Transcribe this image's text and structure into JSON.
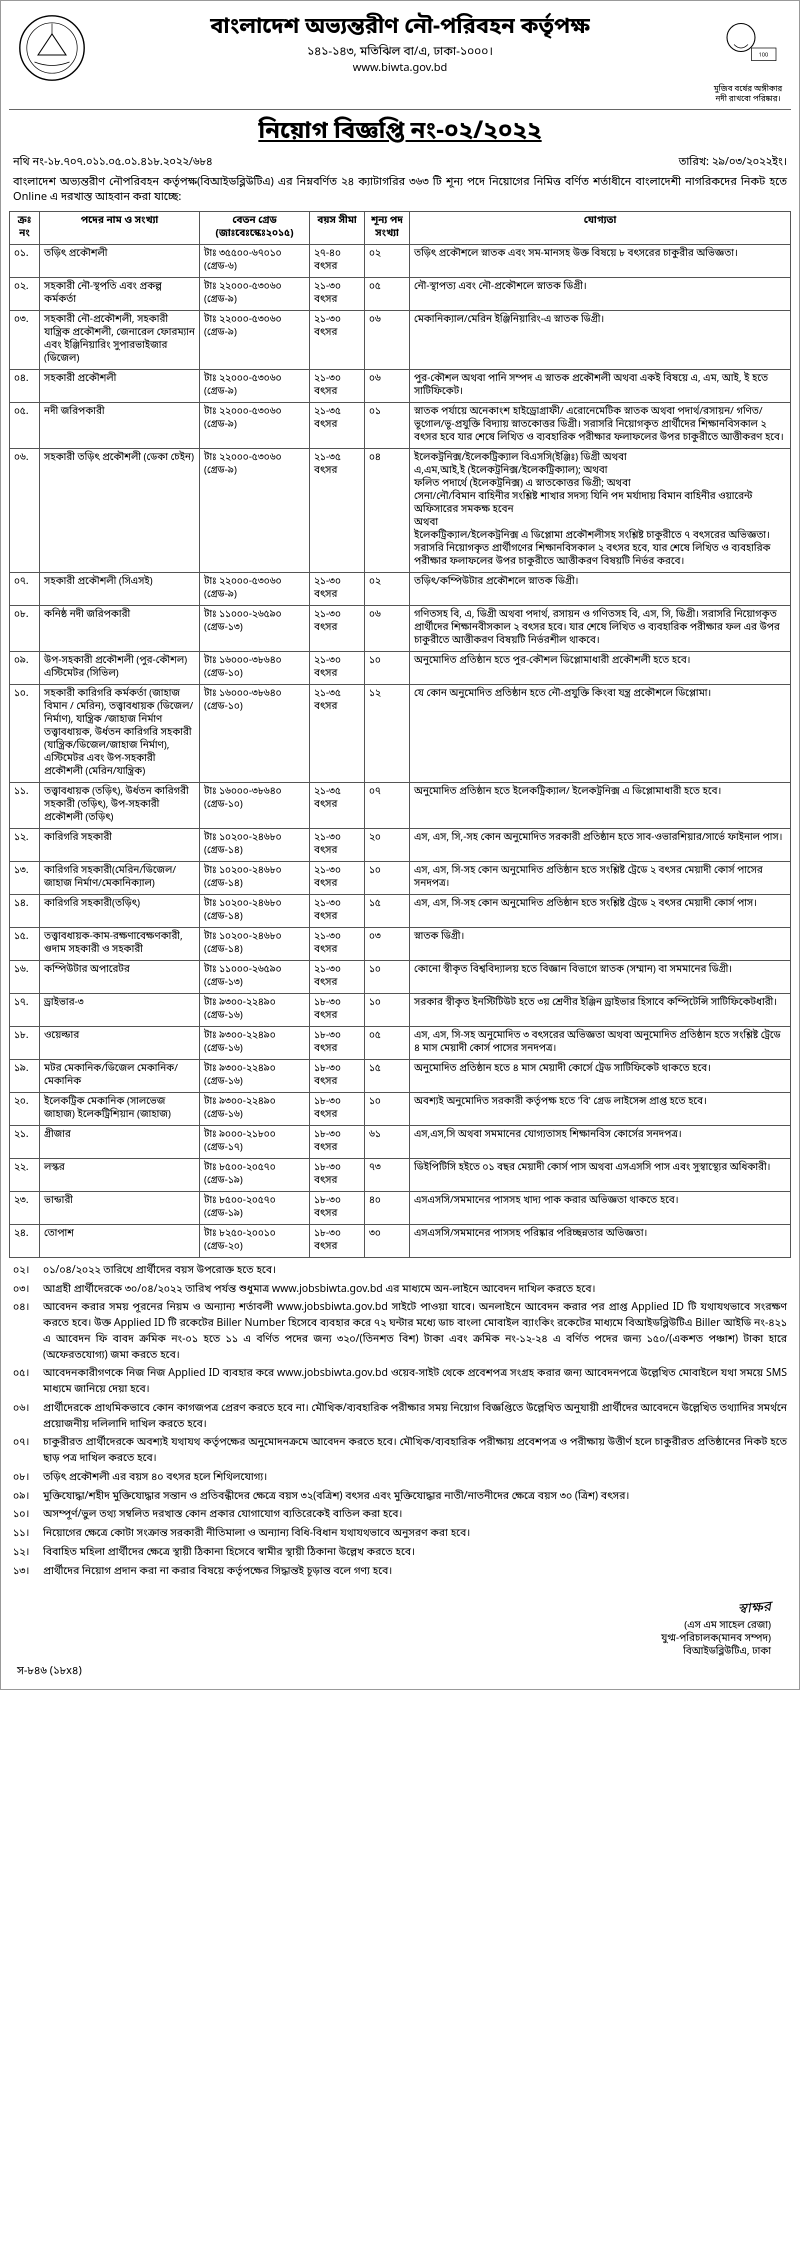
{
  "header": {
    "org_name": "বাংলাদেশ অভ্যন্তরীণ নৌ-পরিবহন কর্তৃপক্ষ",
    "address": "১৪১-১৪৩, মতিঝিল বা/এ, ঢাকা-১০০০।",
    "website": "www.biwta.gov.bd",
    "right_caption": "মুজিব বর্ষের অঙ্গীকার\nনদী রাখবো পরিষ্কার।"
  },
  "notice": {
    "title": "নিয়োগ বিজ্ঞপ্তি নং-০২/২০২২",
    "ref": "নথি নং-১৮.৭০৭.০১১.০৫.০১.৪১৮.২০২২/৬৮৪",
    "date": "তারিখ: ২৯/০৩/২০২২ইং।",
    "intro": "বাংলাদেশ অভ্যন্তরীণ নৌপরিবহন কর্তৃপক্ষ(বিআইডব্লিউটিএ) এর নিম্নবর্ণিত ২৪ ক্যাটাগরির ৩৬৩ টি শূন্য পদে নিয়োগের নিমিত্ত বর্ণিত শর্তাধীনে বাংলাদেশী নাগরিকদের নিকট হতে Online এ দরখাস্ত আহবান করা যাচ্ছে:"
  },
  "table": {
    "headers": {
      "sl": "ক্রঃ নং",
      "post": "পদের নাম ও সংখ্যা",
      "grade": "বেতন গ্রেড\n(জাঃবেঃস্কেঃ২০১৫)",
      "age": "বয়স সীমা",
      "vacancy": "শূন্য পদ সংখ্যা",
      "qual": "যোগ্যতা"
    },
    "rows": [
      {
        "sl": "০১.",
        "post": "তড়িৎ প্রকৌশলী",
        "grade": "টাঃ ৩৫৫০০-৬৭০১০\n(গ্রেড-৬)",
        "age": "২৭-৪০ বৎসর",
        "vac": "০২",
        "qual": "তড়িৎ প্রকৌশলে স্নাতক এবং সম-মানসহ উক্ত বিষয়ে ৮ বৎসরের চাকুরীর অভিজ্ঞতা।"
      },
      {
        "sl": "০২.",
        "post": "সহকারী নৌ-স্থপতি এবং প্রকল্প কর্মকর্তা",
        "grade": "টাঃ ২২০০০-৫৩০৬০\n(গ্রেড-৯)",
        "age": "২১-৩০ বৎসর",
        "vac": "০৫",
        "qual": "নৌ-স্থাপত্য এবং নৌ-প্রকৌশলে স্নাতক ডিগ্রী।"
      },
      {
        "sl": "০৩.",
        "post": "সহকারী নৌ-প্রকৌশলী, সহকারী যান্ত্রিক প্রকৌশলী, জেনারেল ফোরম্যান এবং ইঞ্জিনিয়ারিং সুপারভাইজার (ডিজেল)",
        "grade": "টাঃ ২২০০০-৫৩০৬০\n(গ্রেড-৯)",
        "age": "২১-৩০ বৎসর",
        "vac": "০৬",
        "qual": "মেকানিক্যাল/মেরিন ইঞ্জিনিয়ারিং-এ স্নাতক ডিগ্রী।"
      },
      {
        "sl": "০৪.",
        "post": "সহকারী প্রকৌশলী",
        "grade": "টাঃ ২২০০০-৫৩০৬০\n(গ্রেড-৯)",
        "age": "২১-৩০ বৎসর",
        "vac": "০৬",
        "qual": "পুর-কৌশল অথবা পানি সম্পদ এ স্নাতক প্রকৌশলী অথবা একই বিষয়ে এ, এম, আই, ই হতে সাটিফিকেট।"
      },
      {
        "sl": "০৫.",
        "post": "নদী জরিপকারী",
        "grade": "টাঃ ২২০০০-৫৩০৬০\n(গ্রেড-৯)",
        "age": "২১-৩৫ বৎসর",
        "vac": "০১",
        "qual": "স্নাতক পর্যায়ে অনেকাংশ হাইড্রোগ্রাফী/ এরোনেমেটিক স্নাতক অথবা পদার্থ/রসায়ন/ গণিত/ভূগোল/ভূ-প্রযুক্তি বিদ্যায় স্নাতকোত্তর ডিগ্রী। সরাসরি নিয়োগকৃত প্রার্থীদের শিক্ষানবিসকাল ২ বৎসর হবে যার শেষে লিখিত ও ব্যবহারিক পরীক্ষার ফলাফলের উপর চাকুরীতে আত্তীকরণ হবে।"
      },
      {
        "sl": "০৬.",
        "post": "সহকারী তড়িৎ প্রকৌশলী (ডেকা চেইন)",
        "grade": "টাঃ ২২০০০-৫৩০৬০\n(গ্রেড-৯)",
        "age": "২১-৩৫ বৎসর",
        "vac": "০৪",
        "qual": "ইলেকট্রনিক্স/ইলেকট্রিক্যাল বিএসসি(ইঞ্জিঃ) ডিগ্রী অথবা\nএ,এম,আই,ই (ইলেকট্রনিক্স/ইলেকট্রিক্যাল); অথবা\nফলিত পদার্থে (ইলেকট্রনিক্স) এ স্নাতকোত্তর ডিগ্রী; অথবা\nসেনা/নৌ/বিমান বাহিনীর সংশ্লিষ্ট শাখার সদস্য যিনি পদ মর্যাদায় বিমান বাহিনীর ওয়ারেন্ট অফিসারের সমকক্ষ হবেন\nঅথবা\nইলেকট্রিক্যাল/ইলেকট্রনিক্স এ ডিপ্লোমা প্রকৌশলীসহ সংশ্লিষ্ট চাকুরীতে ৭ বৎসরের অভিজ্ঞতা।\nসরাসরি নিয়োগকৃত প্রার্থীগণের শিক্ষানবিসকাল ২ বৎসর হবে, যার শেষে লিখিত ও ব্যবহারিক পরীক্ষার ফলাফলের উপর চাকুরীতে আত্তীকরণ বিষয়টি নির্ভর করবে।"
      },
      {
        "sl": "০৭.",
        "post": "সহকারী প্রকৌশলী (সিএসই)",
        "grade": "টাঃ ২২০০০-৫৩০৬০\n(গ্রেড-৯)",
        "age": "২১-৩০ বৎসর",
        "vac": "০২",
        "qual": "তড়িৎ/কম্পিউটার প্রকৌশলে স্নাতক ডিগ্রী।"
      },
      {
        "sl": "০৮.",
        "post": "কনিষ্ঠ নদী জরিপকারী",
        "grade": "টাঃ ১১০০০-২৬৫৯০\n(গ্রেড-১৩)",
        "age": "২১-৩০ বৎসর",
        "vac": "০৬",
        "qual": "গণিতসহ বি, এ, ডিগ্রী অথবা পদার্থ, রসায়ন ও গণিতসহ বি, এস, সি, ডিগ্রী। সরাসরি নিয়োগকৃত প্রার্থীদের শিক্ষানবীসকাল ২ বৎসর হবে। যার শেষে লিখিত ও ব্যবহারিক পরীক্ষার ফল এর উপর চাকুরীতে আত্তীকরণ বিষয়টি নির্ভরশীল থাকবে।"
      },
      {
        "sl": "০৯.",
        "post": "উপ-সহকারী প্রকৌশলী (পুর-কৌশল) এস্টিমেটর (সিভিল)",
        "grade": "টাঃ ১৬০০০-৩৮৬৪০\n(গ্রেড-১০)",
        "age": "২১-৩০ বৎসর",
        "vac": "১০",
        "qual": "অনুমোদিত প্রতিষ্ঠান হতে পুর-কৌশল ডিপ্লোমাধারী প্রকৌশলী হতে হবে।"
      },
      {
        "sl": "১০.",
        "post": "সহকারী কারিগরি কর্মকর্তা (জাহাজ বিমান / মেরিন), তত্ত্বাবধায়ক (ডিজেল/ নির্মাণ), যান্ত্রিক /জাহাজ নির্মাণ তত্ত্বাবধায়ক, উর্ধতন কারিগরি সহকারী (যান্ত্রিক/ডিজেল/জাহাজ নির্মাণ), এস্টিমেটর এবং উপ-সহকারী প্রকৌশলী (মেরিন/যান্ত্রিক)",
        "grade": "টাঃ ১৬০০০-৩৮৬৪০\n(গ্রেড-১০)",
        "age": "২১-৩৫ বৎসর",
        "vac": "১২",
        "qual": "যে কোন অনুমোদিত প্রতিষ্ঠান হতে নৌ-প্রযুক্তি কিংবা যন্ত্র প্রকৌশলে ডিপ্লোমা।"
      },
      {
        "sl": "১১.",
        "post": "তত্ত্বাবধায়ক (তড়িৎ), উর্ধতন কারিগরী সহকারী (তড়িৎ), উপ-সহকারী প্রকৌশলী (তড়িৎ)",
        "grade": "টাঃ ১৬০০০-৩৮৬৪০\n(গ্রেড-১০)",
        "age": "২১-৩৫ বৎসর",
        "vac": "০৭",
        "qual": "অনুমোদিত প্রতিষ্ঠান হতে ইলেকট্রিক্যাল/ ইলেকট্রনিক্স এ ডিপ্লোমাধারী হতে হবে।"
      },
      {
        "sl": "১২.",
        "post": "কারিগরি সহকারী",
        "grade": "টাঃ ১০২০০-২৪৬৮০\n(গ্রেড-১৪)",
        "age": "২১-৩০ বৎসর",
        "vac": "২০",
        "qual": "এস, এস, সি,-সহ কোন অনুমোদিত সরকারী প্রতিষ্ঠান হতে সাব-ওভারশিয়ার/সার্ভে ফাইনাল পাস।"
      },
      {
        "sl": "১৩.",
        "post": "কারিগরি সহকারী(মেরিন/ডিজেল/জাহাজ নির্মাণ/মেকানিক্যাল)",
        "grade": "টাঃ ১০২০০-২৪৬৮০\n(গ্রেড-১৪)",
        "age": "২১-৩০ বৎসর",
        "vac": "১০",
        "qual": "এস, এস, সি-সহ কোন অনুমোদিত প্রতিষ্ঠান হতে সংশ্লিষ্ট ট্রেডে ২ বৎসর মেয়াদী কোর্স পাসের সনদপত্র।"
      },
      {
        "sl": "১৪.",
        "post": "কারিগরি সহকারী(তড়িৎ)",
        "grade": "টাঃ ১০২০০-২৪৬৮০\n(গ্রেড-১৪)",
        "age": "২১-৩০ বৎসর",
        "vac": "১৫",
        "qual": "এস, এস, সি-সহ কোন অনুমোদিত প্রতিষ্ঠান হতে সংশ্লিষ্ট ট্রেডে ২ বৎসর মেয়াদী কোর্স পাস।"
      },
      {
        "sl": "১৫.",
        "post": "তত্ত্বাবধায়ক-কাম-রক্ষণাবেক্ষণকারী, গুদাম সহকারী ও সহকারী",
        "grade": "টাঃ ১০২০০-২৪৬৮০\n(গ্রেড-১৪)",
        "age": "২১-৩০ বৎসর",
        "vac": "০৩",
        "qual": "স্নাতক ডিগ্রী।"
      },
      {
        "sl": "১৬.",
        "post": "কম্পিউটার অপারেটর",
        "grade": "টাঃ ১১০০০-২৬৫৯০\n(গ্রেড-১৩)",
        "age": "২১-৩০ বৎসর",
        "vac": "১০",
        "qual": "কোনো স্বীকৃত বিশ্ববিদ্যালয় হতে বিজ্ঞান বিভাগে স্নাতক (সম্মান) বা সমমানের ডিগ্রী।"
      },
      {
        "sl": "১৭.",
        "post": "ড্রাইভার-৩",
        "grade": "টাঃ ৯৩০০-২২৪৯০\n(গ্রেড-১৬)",
        "age": "১৮-৩০ বৎসর",
        "vac": "১০",
        "qual": "সরকার স্বীকৃত ইনস্টিটিউট হতে ৩য় শ্রেণীর ইঞ্জিন ড্রাইভার হিসাবে কম্পিটেন্সি সাটিফিকেটধারী।"
      },
      {
        "sl": "১৮.",
        "post": "ওয়েল্ডার",
        "grade": "টাঃ ৯৩০০-২২৪৯০\n(গ্রেড-১৬)",
        "age": "১৮-৩০ বৎসর",
        "vac": "০৫",
        "qual": "এস, এস, সি-সহ অনুমোদিত ৩ বৎসরের অভিজ্ঞতা অথবা অনুমোদিত প্রতিষ্ঠান হতে সংশ্লিষ্ট ট্রেডে ৪ মাস মেয়াদী কোর্স পাসের সনদপত্র।"
      },
      {
        "sl": "১৯.",
        "post": "মটর মেকানিক/ডিজেল মেকানিক/মেকানিক",
        "grade": "টাঃ ৯৩০০-২২৪৯০\n(গ্রেড-১৬)",
        "age": "১৮-৩০ বৎসর",
        "vac": "১৫",
        "qual": "অনুমোদিত প্রতিষ্ঠান হতে ৪ মাস মেয়াদী কোর্সে ট্রেড সাটিফিকেট থাকতে হবে।"
      },
      {
        "sl": "২০.",
        "post": "ইলেকট্রিক মেকানিক (সালভেজ জাহাজ) ইলেকট্রিশিয়ান (জাহাজ)",
        "grade": "টাঃ ৯৩০০-২২৪৯০\n(গ্রেড-১৬)",
        "age": "১৮-৩০ বৎসর",
        "vac": "১০",
        "qual": "অবশ্যই অনুমোদিত সরকারী কর্তৃপক্ষ হতে 'বি' গ্রেড লাইসেন্স প্রাপ্ত হতে হবে।"
      },
      {
        "sl": "২১.",
        "post": "গ্রীজার",
        "grade": "টাঃ ৯০০০-২১৮০০\n(গ্রেড-১৭)",
        "age": "১৮-৩০ বৎসর",
        "vac": "৬১",
        "qual": "এস,এস,সি অথবা সমমানের যোগ্যতাসহ শিক্ষানবিস কোর্সের সনদপত্র।"
      },
      {
        "sl": "২২.",
        "post": "লস্কর",
        "grade": "টাঃ ৮৫০০-২০৫৭০\n(গ্রেড-১৯)",
        "age": "১৮-৩০ বৎসর",
        "vac": "৭৩",
        "qual": "ডিইপিটিসি হইতে ০১ বছর মেয়াদী কোর্স পাস অথবা এসএসসি পাস এবং সুস্বাস্থ্যের অধিকারী।"
      },
      {
        "sl": "২৩.",
        "post": "ভান্ডারী",
        "grade": "টাঃ ৮৫০০-২০৫৭০\n(গ্রেড-১৯)",
        "age": "১৮-৩০ বৎসর",
        "vac": "৪০",
        "qual": "এসএসসি/সমমানের পাসসহ খাদ্য পাক করার অভিজ্ঞতা থাকতে হবে।"
      },
      {
        "sl": "২৪.",
        "post": "তোপাশ",
        "grade": "টাঃ ৮২৫০-২০০১০\n(গ্রেড-২০)",
        "age": "১৮-৩০ বৎসর",
        "vac": "৩০",
        "qual": "এসএসসি/সমমানের পাসসহ পরিষ্কার পরিচ্ছন্নতার অভিজ্ঞতা।"
      }
    ]
  },
  "conditions": [
    {
      "num": "০২।",
      "text": "০১/০৪/২০২২ তারিখে প্রার্থীদের বয়স উপরোক্ত হতে হবে।"
    },
    {
      "num": "০৩।",
      "text": "আগ্রহী প্রার্থীদেরকে ৩০/০৪/২০২২ তারিখ পর্যন্ত শুধুমাত্র www.jobsbiwta.gov.bd এর মাধ্যমে অন-লাইনে আবেদন দাখিল করতে হবে।"
    },
    {
      "num": "০৪।",
      "text": "আবেদন করার সময় পূরনের নিয়ম ও অন্যান্য শর্তাবলী www.jobsbiwta.gov.bd সাইটে পাওয়া যাবে। অনলাইনে আবেদন করার পর প্রাপ্ত Applied ID টি যথাযথভাবে সংরক্ষণ করতে হবে। উক্ত Applied ID টি রকেটের Biller Number হিসেবে ব্যবহার করে ৭২ ঘন্টার মধ্যে ডাচ বাংলা মোবাইল ব্যাংকিং রকেটের মাধ্যমে বিআইডব্লিউটিএ Biller আইডি নং-৪২১ এ আবেদন ফি বাবদ ক্রমিক নং-০১ হতে ১১ এ বর্ণিত পদের জন্য ৩২০/(তিনশত বিশ) টাকা এবং ক্রমিক নং-১২-২৪ এ বর্ণিত পদের জন্য ১৫০/(একশত পঞ্চাশ) টাকা হারে (অফেরতযোগ্য) জমা করতে হবে।"
    },
    {
      "num": "০৫।",
      "text": "আবেদনকারীগণকে নিজ নিজ Applied ID ব্যবহার করে www.jobsbiwta.gov.bd ওয়েব-সাইট থেকে প্রবেশপত্র সংগ্রহ করার জন্য আবেদনপত্রে উল্লেখিত মোবাইলে যথা সময়ে SMS মাধ্যমে জানিয়ে দেয়া হবে।"
    },
    {
      "num": "০৬।",
      "text": "প্রার্থীদেরকে প্রাথমিকভাবে কোন কাগজপত্র প্রেরণ করতে হবে না। মৌখিক/ব্যবহারিক পরীক্ষার সময় নিয়োগ বিজ্ঞপ্তিতে উল্লেখিত অনুযায়ী প্রার্থীদের আবেদনে উল্লেখিত তথ্যাদির সমর্থনে প্রয়োজনীয় দলিলাদি দাখিল করতে হবে।"
    },
    {
      "num": "০৭।",
      "text": "চাকুরীরত প্রার্থীদেরকে অবশ্যই যথাযথ কর্তৃপক্ষের অনুমোদনক্রমে আবেদন করতে হবে। মৌখিক/ব্যবহারিক পরীক্ষায় প্রবেশপত্র ও পরীক্ষায় উত্তীর্ণ হলে চাকুরীরত প্রতিষ্ঠানের নিকট হতে ছাড় পত্র দাখিল করতে হবে।"
    },
    {
      "num": "০৮।",
      "text": "তড়িৎ প্রকৌশলী এর বয়স ৪০ বৎসর হলে শিথিলযোগ্য।"
    },
    {
      "num": "০৯।",
      "text": "মুক্তিযোদ্ধা/শহীদ মুক্তিযোদ্ধার সন্তান ও প্রতিবন্ধীদের ক্ষেত্রে বয়স ৩২(বত্রিশ) বৎসর এবং মুক্তিযোদ্ধার নাতী/নাতনীদের ক্ষেত্রে বয়স ৩০ (ত্রিশ) বৎসর।"
    },
    {
      "num": "১০।",
      "text": "অসম্পূর্ণ/ভুল তথ্য সম্বলিত দরখাস্ত কোন প্রকার যোগাযোগ ব্যতিরেকেই বাতিল করা হবে।"
    },
    {
      "num": "১১।",
      "text": "নিয়োগের ক্ষেত্রে কোটা সংক্রান্ত সরকারী নীতিমালা ও অন্যান্য বিধি-বিধান যথাযথভাবে অনুসরণ করা হবে।"
    },
    {
      "num": "১২।",
      "text": "বিবাহিত মহিলা প্রার্থীদের ক্ষেত্রে স্থায়ী ঠিকানা হিসেবে স্বামীর স্থায়ী ঠিকানা উল্লেখ করতে হবে।"
    },
    {
      "num": "১৩।",
      "text": "প্রার্থীদের নিয়োগ প্রদান করা না করার বিষয়ে কর্তৃপক্ষের সিদ্ধান্তই চূড়ান্ত বলে গণ্য হবে।"
    }
  ],
  "signature": {
    "sign": "স্বাক্ষর",
    "name": "(এস এম সাহেল রেজা)",
    "title": "যুগ্ম-পরিচালক(মানব সম্পদ)",
    "org": "বিআইডব্লিউটিএ, ঢাকা"
  },
  "footer": {
    "code": "স-৮৪৬ (১৮x৪)"
  }
}
